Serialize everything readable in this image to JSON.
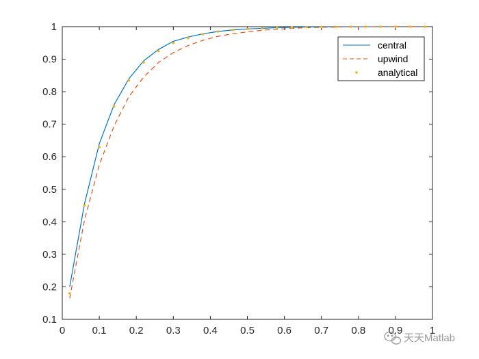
{
  "chart_data": {
    "type": "line",
    "xlim": [
      0,
      1
    ],
    "ylim": [
      0.1,
      1
    ],
    "xticks": [
      0,
      0.1,
      0.2,
      0.3,
      0.4,
      0.5,
      0.6,
      0.7,
      0.8,
      0.9,
      1
    ],
    "yticks": [
      0.1,
      0.2,
      0.3,
      0.4,
      0.5,
      0.6,
      0.7,
      0.8,
      0.9,
      1
    ],
    "xtick_labels": [
      "0",
      "0.1",
      "0.2",
      "0.3",
      "0.4",
      "0.5",
      "0.6",
      "0.7",
      "0.8",
      "0.9",
      "1"
    ],
    "ytick_labels": [
      "0.1",
      "0.2",
      "0.3",
      "0.4",
      "0.5",
      "0.6",
      "0.7",
      "0.8",
      "0.9",
      "1"
    ],
    "grid": false,
    "legend_position": "top-right",
    "x": [
      0.02,
      0.06,
      0.1,
      0.14,
      0.18,
      0.22,
      0.26,
      0.3,
      0.34,
      0.38,
      0.42,
      0.46,
      0.5,
      0.54,
      0.58,
      0.62,
      0.66,
      0.7,
      0.74,
      0.78,
      0.82,
      0.86,
      0.9,
      0.94,
      0.98
    ],
    "series": [
      {
        "name": "central",
        "style": "solid",
        "color": "#0072BD",
        "values": [
          0.2,
          0.455,
          0.64,
          0.76,
          0.84,
          0.895,
          0.93,
          0.955,
          0.968,
          0.978,
          0.985,
          0.99,
          0.993,
          0.995,
          0.997,
          0.998,
          0.999,
          0.9993,
          0.9996,
          0.9998,
          0.9999,
          1.0,
          1.0,
          1.0,
          1.0
        ]
      },
      {
        "name": "upwind",
        "style": "dashed",
        "color": "#D95319",
        "values": [
          0.165,
          0.405,
          0.575,
          0.695,
          0.785,
          0.845,
          0.89,
          0.92,
          0.942,
          0.958,
          0.97,
          0.978,
          0.984,
          0.989,
          0.992,
          0.995,
          0.997,
          0.998,
          0.9988,
          0.9993,
          0.9996,
          0.9998,
          0.9999,
          1.0,
          1.0
        ]
      },
      {
        "name": "analytical",
        "style": "markers",
        "color": "#EDB120",
        "values": [
          0.18,
          0.45,
          0.63,
          0.755,
          0.835,
          0.89,
          0.925,
          0.95,
          0.965,
          0.977,
          0.985,
          0.99,
          0.993,
          0.995,
          0.997,
          0.998,
          0.999,
          0.9993,
          0.9996,
          0.9998,
          0.9999,
          1.0,
          1.0,
          1.0,
          1.0
        ]
      }
    ]
  },
  "watermark": {
    "text": "天天Matlab",
    "icon": "wechat-icon"
  }
}
